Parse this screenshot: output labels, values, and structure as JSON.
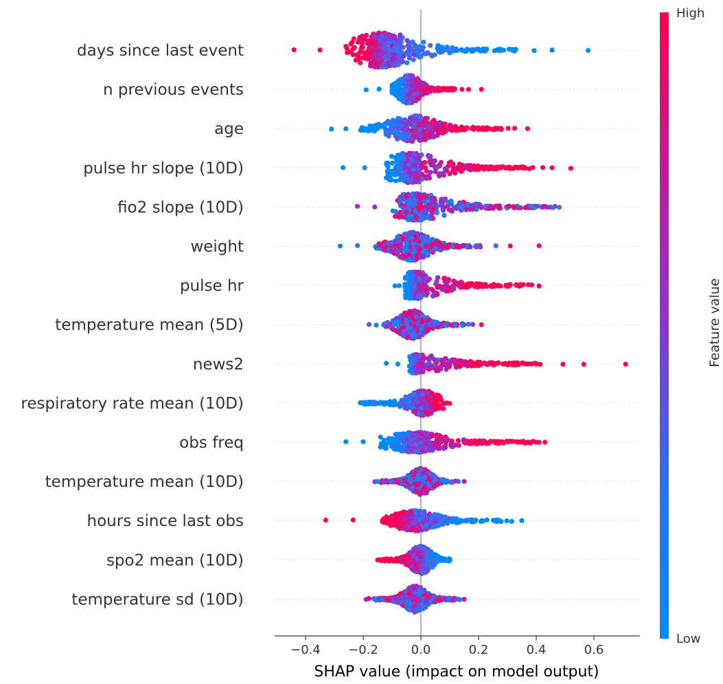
{
  "chart_data": {
    "type": "scatter",
    "subtype": "shap-beeswarm",
    "title": "",
    "xlabel": "SHAP value (impact on model output)",
    "ylabel": "",
    "xlim": [
      -0.51,
      0.76
    ],
    "x_ticks": [
      -0.4,
      -0.2,
      0.0,
      0.2,
      0.4,
      0.6
    ],
    "x_tick_labels": [
      "−0.4",
      "−0.2",
      "0.0",
      "0.2",
      "0.4",
      "0.6"
    ],
    "grid": false,
    "colorbar": {
      "title": "Feature value",
      "high_label": "High",
      "low_label": "Low",
      "high_color": "#ff0052",
      "low_color": "#008bfb"
    },
    "features": [
      {
        "name": "days since last event",
        "min": -0.44,
        "max": 0.58,
        "core_min": -0.26,
        "core_max": 0.33,
        "peak": -0.13,
        "height": 1.0,
        "skew": "left-high"
      },
      {
        "name": "n previous events",
        "min": -0.19,
        "max": 0.21,
        "core_min": -0.1,
        "core_max": 0.12,
        "peak": -0.04,
        "height": 0.8,
        "skew": "right-high"
      },
      {
        "name": "age",
        "min": -0.31,
        "max": 0.37,
        "core_min": -0.21,
        "core_max": 0.28,
        "peak": -0.03,
        "height": 0.75,
        "skew": "right-high"
      },
      {
        "name": "pulse hr slope (10D)",
        "min": -0.27,
        "max": 0.52,
        "core_min": -0.12,
        "core_max": 0.39,
        "peak": -0.04,
        "height": 0.85,
        "skew": "right-high"
      },
      {
        "name": "fio2 slope (10D)",
        "min": -0.22,
        "max": 0.48,
        "core_min": -0.1,
        "core_max": 0.45,
        "peak": -0.02,
        "height": 0.75,
        "skew": "mixed"
      },
      {
        "name": "weight",
        "min": -0.28,
        "max": 0.41,
        "core_min": -0.16,
        "core_max": 0.21,
        "peak": -0.03,
        "height": 0.8,
        "skew": "mixed"
      },
      {
        "name": "pulse hr",
        "min": -0.09,
        "max": 0.41,
        "core_min": -0.06,
        "core_max": 0.36,
        "peak": -0.02,
        "height": 0.75,
        "skew": "right-high"
      },
      {
        "name": "temperature mean (5D)",
        "min": -0.18,
        "max": 0.21,
        "core_min": -0.13,
        "core_max": 0.15,
        "peak": -0.03,
        "height": 0.8,
        "skew": "mixed"
      },
      {
        "name": "news2",
        "min": -0.12,
        "max": 0.71,
        "core_min": -0.04,
        "core_max": 0.42,
        "peak": -0.02,
        "height": 0.5,
        "skew": "right-high"
      },
      {
        "name": "respiratory rate mean (10D)",
        "min": -0.21,
        "max": 0.1,
        "core_min": -0.2,
        "core_max": 0.08,
        "peak": 0.01,
        "height": 0.7,
        "skew": "left-low"
      },
      {
        "name": "obs freq",
        "min": -0.26,
        "max": 0.43,
        "core_min": -0.14,
        "core_max": 0.39,
        "peak": -0.02,
        "height": 0.55,
        "skew": "right-high"
      },
      {
        "name": "temperature mean (10D)",
        "min": -0.16,
        "max": 0.15,
        "core_min": -0.14,
        "core_max": 0.11,
        "peak": 0.0,
        "height": 0.75,
        "skew": "mixed"
      },
      {
        "name": "hours since last obs",
        "min": -0.33,
        "max": 0.35,
        "core_min": -0.14,
        "core_max": 0.28,
        "peak": -0.02,
        "height": 0.55,
        "skew": "right-low"
      },
      {
        "name": "spo2 mean (10D)",
        "min": -0.15,
        "max": 0.1,
        "core_min": -0.14,
        "core_max": 0.1,
        "peak": 0.0,
        "height": 0.8,
        "skew": "left-high"
      },
      {
        "name": "temperature sd (10D)",
        "min": -0.19,
        "max": 0.15,
        "core_min": -0.17,
        "core_max": 0.12,
        "peak": -0.02,
        "height": 0.75,
        "skew": "mixed"
      }
    ]
  }
}
